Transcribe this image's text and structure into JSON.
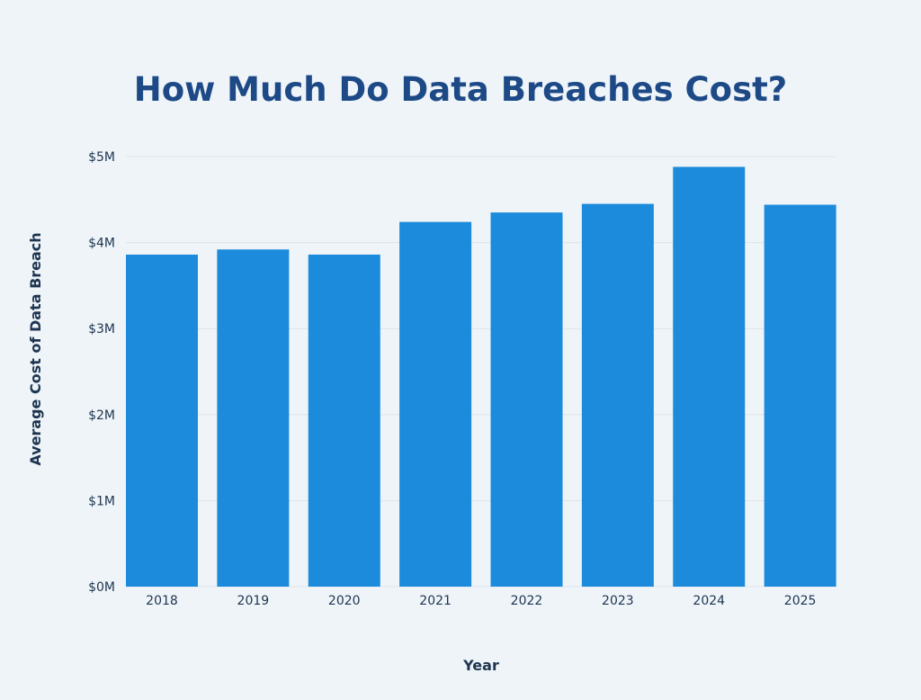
{
  "chart_data": {
    "type": "bar",
    "title": "How Much Do Data Breaches Cost?",
    "xlabel": "Year",
    "ylabel": "Average Cost of Data Breach",
    "categories": [
      "2018",
      "2019",
      "2020",
      "2021",
      "2022",
      "2023",
      "2024",
      "2025"
    ],
    "values": [
      3.86,
      3.92,
      3.86,
      4.24,
      4.35,
      4.45,
      4.88,
      4.44
    ],
    "unit": "$M",
    "ylim": [
      0,
      5
    ],
    "yticks": [
      "$0M",
      "$1M",
      "$2M",
      "$3M",
      "$4M",
      "$5M"
    ],
    "grid": true,
    "bar_color": "#1c8bdb",
    "title_color": "#1d4a86"
  }
}
